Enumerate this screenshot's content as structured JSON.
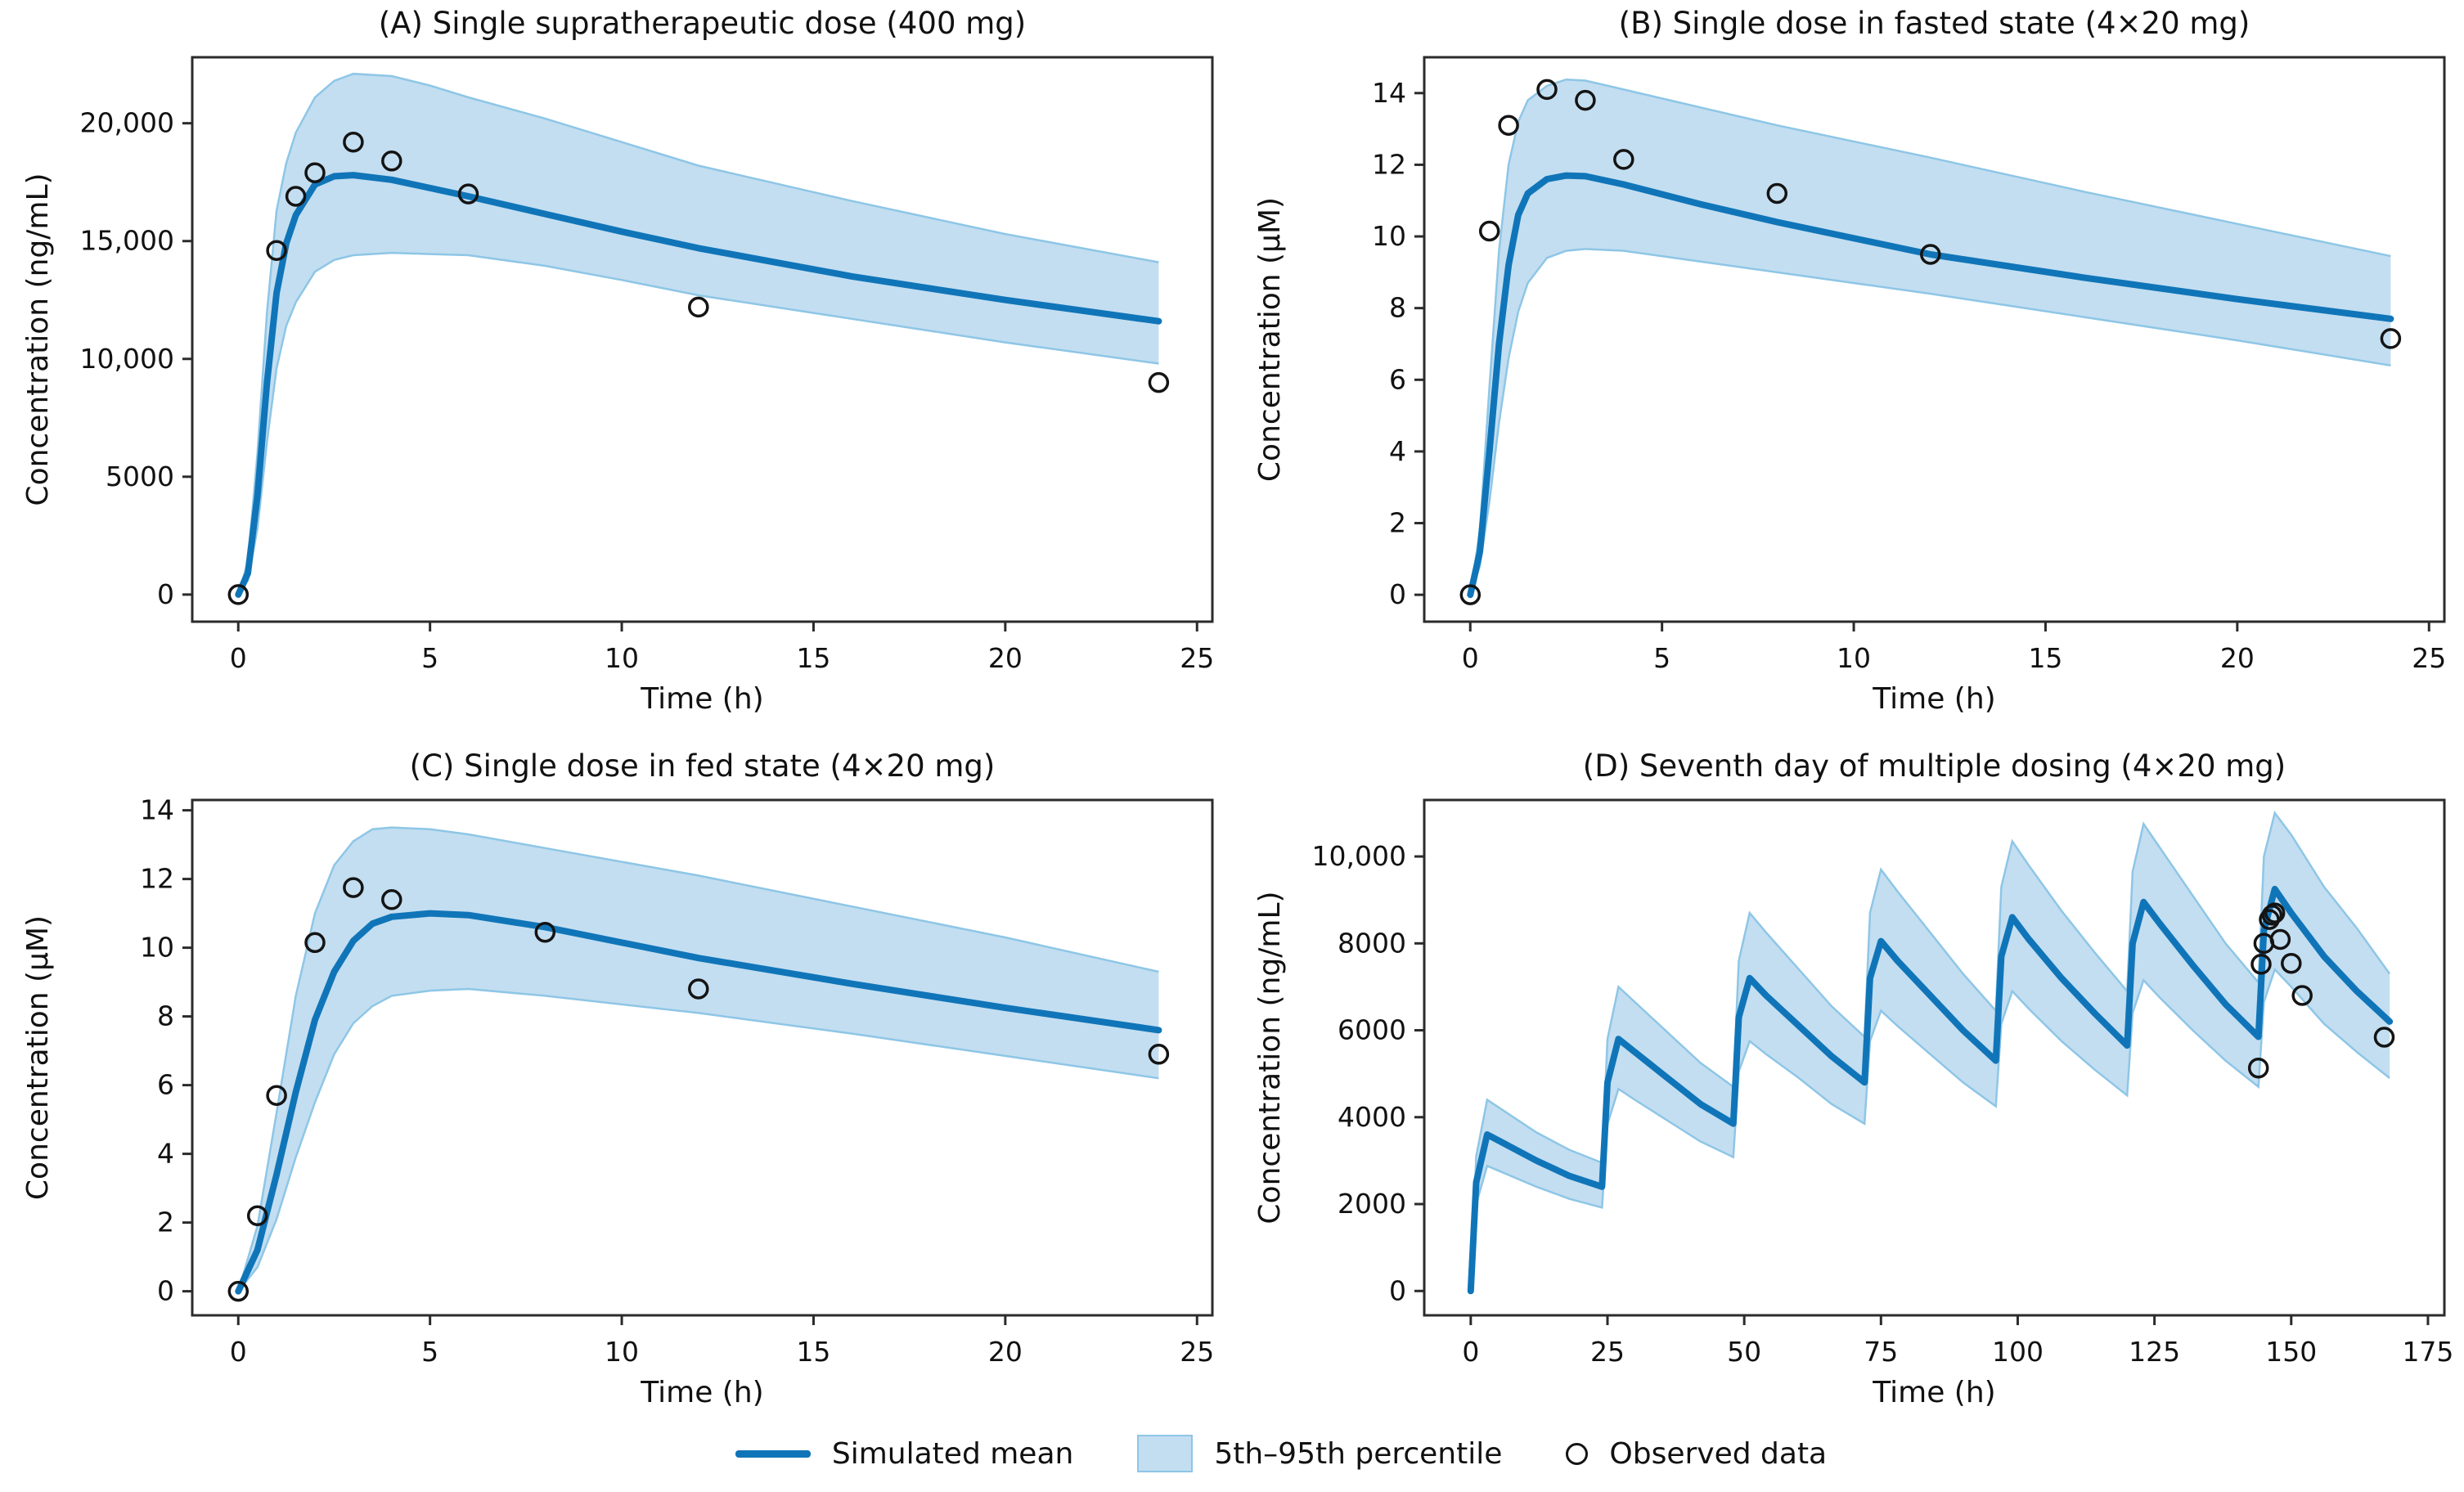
{
  "figure": {
    "background": "#ffffff"
  },
  "colors": {
    "mean_line": "#1075b8",
    "band_fill": "#c3def1",
    "band_edge": "#8ec6e6",
    "marker_edge": "#141414",
    "spine": "#2b2b2b",
    "text": "#111111"
  },
  "legend": {
    "items": [
      {
        "type": "line",
        "label": "Simulated mean"
      },
      {
        "type": "patch",
        "label": "5th–95th percentile"
      },
      {
        "type": "marker",
        "label": "Observed data"
      }
    ]
  },
  "chart_data": [
    {
      "id": "A",
      "type": "line",
      "title": "(A) Single supratherapeutic dose (400 mg)",
      "xlabel": "Time (h)",
      "ylabel": "Concentration (ng/mL)",
      "xlim": [
        -1.2,
        25.4
      ],
      "ylim": [
        -1150,
        22800
      ],
      "xticks": {
        "values": [
          0,
          5,
          10,
          15,
          20,
          25
        ],
        "labels": [
          "0",
          "5",
          "10",
          "15",
          "20",
          "25"
        ]
      },
      "yticks": {
        "values": [
          0,
          5000,
          10000,
          15000,
          20000
        ],
        "labels": [
          "0",
          "5000",
          "10,000",
          "15,000",
          "20,000"
        ]
      },
      "sim": {
        "t": [
          0,
          0.25,
          0.5,
          0.75,
          1,
          1.25,
          1.5,
          2,
          2.5,
          3,
          4,
          5,
          6,
          8,
          10,
          12,
          16,
          20,
          24
        ],
        "mean": [
          0,
          900,
          4200,
          9000,
          12800,
          14900,
          16100,
          17400,
          17750,
          17800,
          17600,
          17250,
          16900,
          16150,
          15400,
          14700,
          13500,
          12500,
          11600
        ],
        "p95": [
          0,
          1400,
          6000,
          12000,
          16300,
          18300,
          19600,
          21100,
          21800,
          22100,
          22000,
          21600,
          21100,
          20200,
          19200,
          18200,
          16700,
          15300,
          14100
        ],
        "p5": [
          0,
          600,
          2800,
          6500,
          9600,
          11400,
          12400,
          13700,
          14200,
          14400,
          14500,
          14450,
          14400,
          13950,
          13350,
          12700,
          11700,
          10700,
          9800
        ]
      },
      "observed": {
        "t": [
          0,
          1,
          1.5,
          2,
          3,
          4,
          6,
          12,
          24
        ],
        "v": [
          0,
          14600,
          16900,
          17900,
          19200,
          18400,
          17000,
          12200,
          9000
        ]
      }
    },
    {
      "id": "B",
      "type": "line",
      "title": "(B) Single dose in fasted state (4×20 mg)",
      "xlabel": "Time (h)",
      "ylabel": "Concentration (µM)",
      "xlim": [
        -1.2,
        25.4
      ],
      "ylim": [
        -0.75,
        15.0
      ],
      "xticks": {
        "values": [
          0,
          5,
          10,
          15,
          20,
          25
        ],
        "labels": [
          "0",
          "5",
          "10",
          "15",
          "20",
          "25"
        ]
      },
      "yticks": {
        "values": [
          0,
          2,
          4,
          6,
          8,
          10,
          12,
          14
        ],
        "labels": [
          "0",
          "2",
          "4",
          "6",
          "8",
          "10",
          "12",
          "14"
        ]
      },
      "sim": {
        "t": [
          0,
          0.25,
          0.5,
          0.75,
          1,
          1.25,
          1.5,
          2,
          2.5,
          3,
          4,
          6,
          8,
          12,
          16,
          20,
          24
        ],
        "mean": [
          0,
          1.2,
          4.0,
          7.0,
          9.2,
          10.6,
          11.2,
          11.6,
          11.7,
          11.68,
          11.45,
          10.9,
          10.4,
          9.5,
          8.85,
          8.25,
          7.7
        ],
        "p95": [
          0,
          1.8,
          5.8,
          9.6,
          12.0,
          13.2,
          13.8,
          14.2,
          14.38,
          14.35,
          14.1,
          13.6,
          13.1,
          12.2,
          11.25,
          10.35,
          9.45
        ],
        "p5": [
          0,
          0.8,
          2.6,
          4.8,
          6.6,
          7.9,
          8.7,
          9.4,
          9.6,
          9.65,
          9.6,
          9.3,
          9.0,
          8.4,
          7.75,
          7.1,
          6.4
        ]
      },
      "observed": {
        "t": [
          0,
          0.5,
          1,
          2,
          3,
          4,
          8,
          12,
          24
        ],
        "v": [
          0,
          10.15,
          13.1,
          14.1,
          13.8,
          12.15,
          11.2,
          9.5,
          7.15
        ]
      }
    },
    {
      "id": "C",
      "type": "line",
      "title": "(C) Single dose in fed state (4×20 mg)",
      "xlabel": "Time (h)",
      "ylabel": "Concentration (µM)",
      "xlim": [
        -1.2,
        25.4
      ],
      "ylim": [
        -0.7,
        14.3
      ],
      "xticks": {
        "values": [
          0,
          5,
          10,
          15,
          20,
          25
        ],
        "labels": [
          "0",
          "5",
          "10",
          "15",
          "20",
          "25"
        ]
      },
      "yticks": {
        "values": [
          0,
          2,
          4,
          6,
          8,
          10,
          12,
          14
        ],
        "labels": [
          "0",
          "2",
          "4",
          "6",
          "8",
          "10",
          "12",
          "14"
        ]
      },
      "sim": {
        "t": [
          0,
          0.5,
          1,
          1.5,
          2,
          2.5,
          3,
          3.5,
          4,
          5,
          6,
          8,
          12,
          16,
          20,
          24
        ],
        "mean": [
          0,
          1.2,
          3.4,
          5.8,
          7.9,
          9.3,
          10.2,
          10.7,
          10.9,
          11.0,
          10.95,
          10.6,
          9.7,
          8.95,
          8.25,
          7.6
        ],
        "p95": [
          0,
          1.9,
          5.2,
          8.6,
          11.0,
          12.4,
          13.1,
          13.45,
          13.5,
          13.45,
          13.3,
          12.9,
          12.1,
          11.2,
          10.3,
          9.3
        ],
        "p5": [
          0,
          0.7,
          2.1,
          3.9,
          5.5,
          6.9,
          7.8,
          8.3,
          8.6,
          8.75,
          8.8,
          8.6,
          8.1,
          7.5,
          6.85,
          6.2
        ]
      },
      "observed": {
        "t": [
          0,
          0.5,
          1,
          2,
          3,
          4,
          8,
          12,
          24
        ],
        "v": [
          0,
          2.2,
          5.7,
          10.15,
          11.75,
          11.4,
          10.45,
          8.8,
          6.9
        ]
      }
    },
    {
      "id": "D",
      "type": "line",
      "title": "(D) Seventh day of multiple dosing (4×20 mg)",
      "xlabel": "Time (h)",
      "ylabel": "Concentration (ng/mL)",
      "xlim": [
        -8.5,
        178
      ],
      "ylim": [
        -560,
        11300
      ],
      "xticks": {
        "values": [
          0,
          25,
          50,
          75,
          100,
          125,
          150,
          175
        ],
        "labels": [
          "0",
          "25",
          "50",
          "75",
          "100",
          "125",
          "150",
          "175"
        ]
      },
      "yticks": {
        "values": [
          0,
          2000,
          4000,
          6000,
          8000,
          10000
        ],
        "labels": [
          "0",
          "2000",
          "4000",
          "6000",
          "8000",
          "10,000"
        ]
      },
      "sim": {
        "t": [
          0,
          1,
          3,
          6,
          12,
          18,
          24,
          25,
          27,
          30,
          36,
          42,
          48,
          49,
          51,
          54,
          60,
          66,
          72,
          73,
          75,
          78,
          84,
          90,
          96,
          97,
          99,
          102,
          108,
          114,
          120,
          121,
          123,
          126,
          132,
          138,
          144,
          145,
          147,
          150,
          156,
          162,
          168
        ],
        "mean": [
          0,
          2500,
          3600,
          3400,
          3000,
          2650,
          2400,
          4800,
          5800,
          5500,
          4900,
          4300,
          3850,
          6300,
          7200,
          6800,
          6100,
          5400,
          4800,
          7200,
          8050,
          7600,
          6800,
          6000,
          5300,
          7700,
          8600,
          8100,
          7200,
          6400,
          5650,
          8000,
          8950,
          8450,
          7500,
          6600,
          5850,
          8300,
          9250,
          8700,
          7700,
          6900,
          6200
        ],
        "p95": [
          0,
          3100,
          4400,
          4150,
          3650,
          3250,
          2950,
          5800,
          7000,
          6650,
          5950,
          5250,
          4700,
          7600,
          8700,
          8250,
          7400,
          6550,
          5850,
          8700,
          9700,
          9200,
          8250,
          7300,
          6450,
          9300,
          10350,
          9800,
          8750,
          7800,
          6900,
          9650,
          10750,
          10200,
          9100,
          8000,
          7100,
          10000,
          11000,
          10500,
          9300,
          8350,
          7300
        ],
        "p5": [
          0,
          2000,
          2880,
          2720,
          2400,
          2120,
          1920,
          3840,
          4650,
          4400,
          3920,
          3440,
          3080,
          5050,
          5750,
          5450,
          4900,
          4300,
          3850,
          5750,
          6450,
          6100,
          5450,
          4800,
          4250,
          6150,
          6900,
          6500,
          5750,
          5100,
          4500,
          6400,
          7150,
          6750,
          6000,
          5300,
          4700,
          6650,
          7400,
          7000,
          6150,
          5500,
          4900
        ]
      },
      "observed": {
        "t": [
          144,
          144.5,
          145,
          146,
          146.5,
          147,
          148,
          150,
          152,
          167
        ],
        "v": [
          5130,
          7520,
          8000,
          8550,
          8650,
          8700,
          8090,
          7540,
          6800,
          5840
        ]
      }
    }
  ]
}
